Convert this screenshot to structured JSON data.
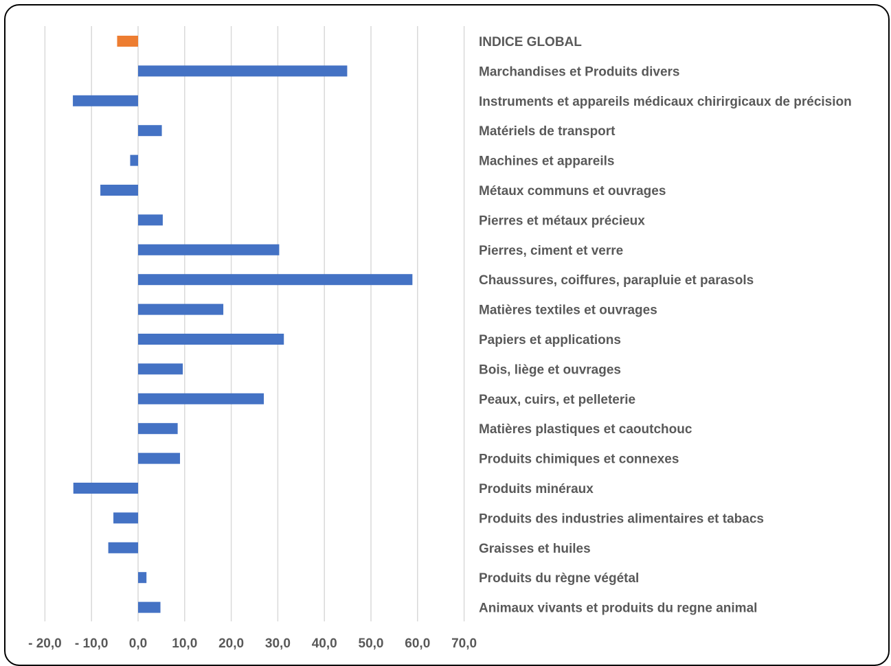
{
  "chart_data": {
    "type": "bar",
    "orientation": "horizontal",
    "categories": [
      "INDICE GLOBAL",
      "Marchandises et Produits divers",
      "Instruments et appareils médicaux chirirgicaux de précision",
      "Matériels de transport",
      "Machines et appareils",
      "Métaux communs et ouvrages",
      "Pierres et métaux précieux",
      "Pierres, ciment et verre",
      "Chaussures, coiffures, parapluie et parasols",
      "Matières textiles et ouvrages",
      "Papiers et applications",
      "Bois, liège et ouvrages",
      "Peaux, cuirs, et pelleterie",
      "Matières plastiques et caoutchouc",
      "Produits chimiques et connexes",
      "Produits minéraux",
      "Produits des industries alimentaires et tabacs",
      "Graisses et huiles",
      "Produits du règne végétal",
      "Animaux vivants et produits du regne animal"
    ],
    "values": [
      -4.5,
      44.9,
      -14.0,
      5.1,
      -1.7,
      -8.1,
      5.3,
      30.3,
      58.9,
      18.3,
      31.3,
      9.6,
      27.0,
      8.5,
      9.0,
      -13.9,
      -5.3,
      -6.4,
      1.8,
      4.8
    ],
    "highlight": {
      "index": 0,
      "color": "#ED7D31"
    },
    "bar_color": "#4472C4",
    "x_ticks": [
      "- 20,0",
      "- 10,0",
      "0,0",
      "10,0",
      "20,0",
      "30,0",
      "40,0",
      "50,0",
      "60,0",
      "70,0"
    ],
    "x_tick_values": [
      -20,
      -10,
      0,
      10,
      20,
      30,
      40,
      50,
      60,
      70
    ],
    "xlim": [
      -20,
      70
    ],
    "grid": true,
    "gridline_color": "#d9d9d9",
    "label_color": "#595959",
    "title": "",
    "xlabel": "",
    "ylabel": ""
  }
}
